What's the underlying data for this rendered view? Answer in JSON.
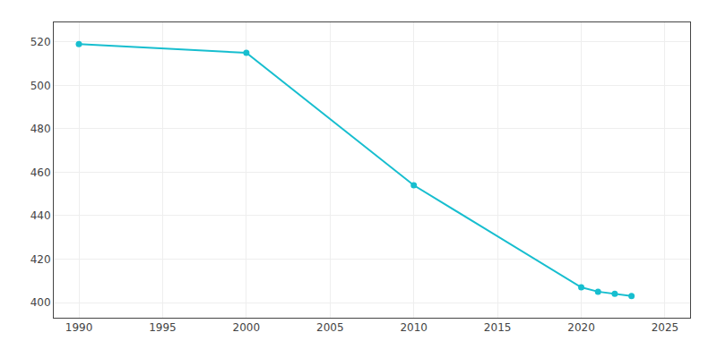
{
  "chart_data": {
    "type": "line",
    "x": [
      1990,
      2000,
      2010,
      2020,
      2021,
      2022,
      2023
    ],
    "values": [
      519,
      515,
      454,
      407,
      405,
      404,
      403
    ],
    "color": "#17becf",
    "marker": "circle",
    "xlim": [
      1988.5,
      2026.5
    ],
    "ylim": [
      393,
      529
    ],
    "xticks": [
      1990,
      1995,
      2000,
      2005,
      2010,
      2015,
      2020,
      2025
    ],
    "yticks": [
      400,
      420,
      440,
      460,
      480,
      500,
      520
    ],
    "grid": true
  }
}
